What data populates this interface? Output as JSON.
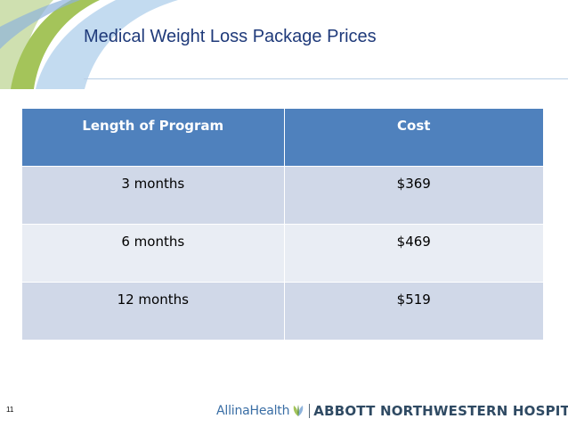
{
  "slide": {
    "title": "Medical Weight Loss Package Prices",
    "number": "11"
  },
  "table": {
    "headers": [
      "Length of Program",
      "Cost"
    ],
    "rows": [
      [
        "3 months",
        "$369"
      ],
      [
        "6 months",
        "$469"
      ],
      [
        "12 months",
        "$519"
      ]
    ]
  },
  "footer": {
    "brand": "AllinaHealth",
    "hospital": "ABBOTT NORTHWESTERN HOSPITAL"
  },
  "colors": {
    "title": "#1f3a7a",
    "header_bg": "#4f81bd",
    "row_odd": "#d0d8e8",
    "row_even": "#e9edf4",
    "swoosh_green": "#a4c45a",
    "swoosh_blue": "#8fb4dc"
  }
}
